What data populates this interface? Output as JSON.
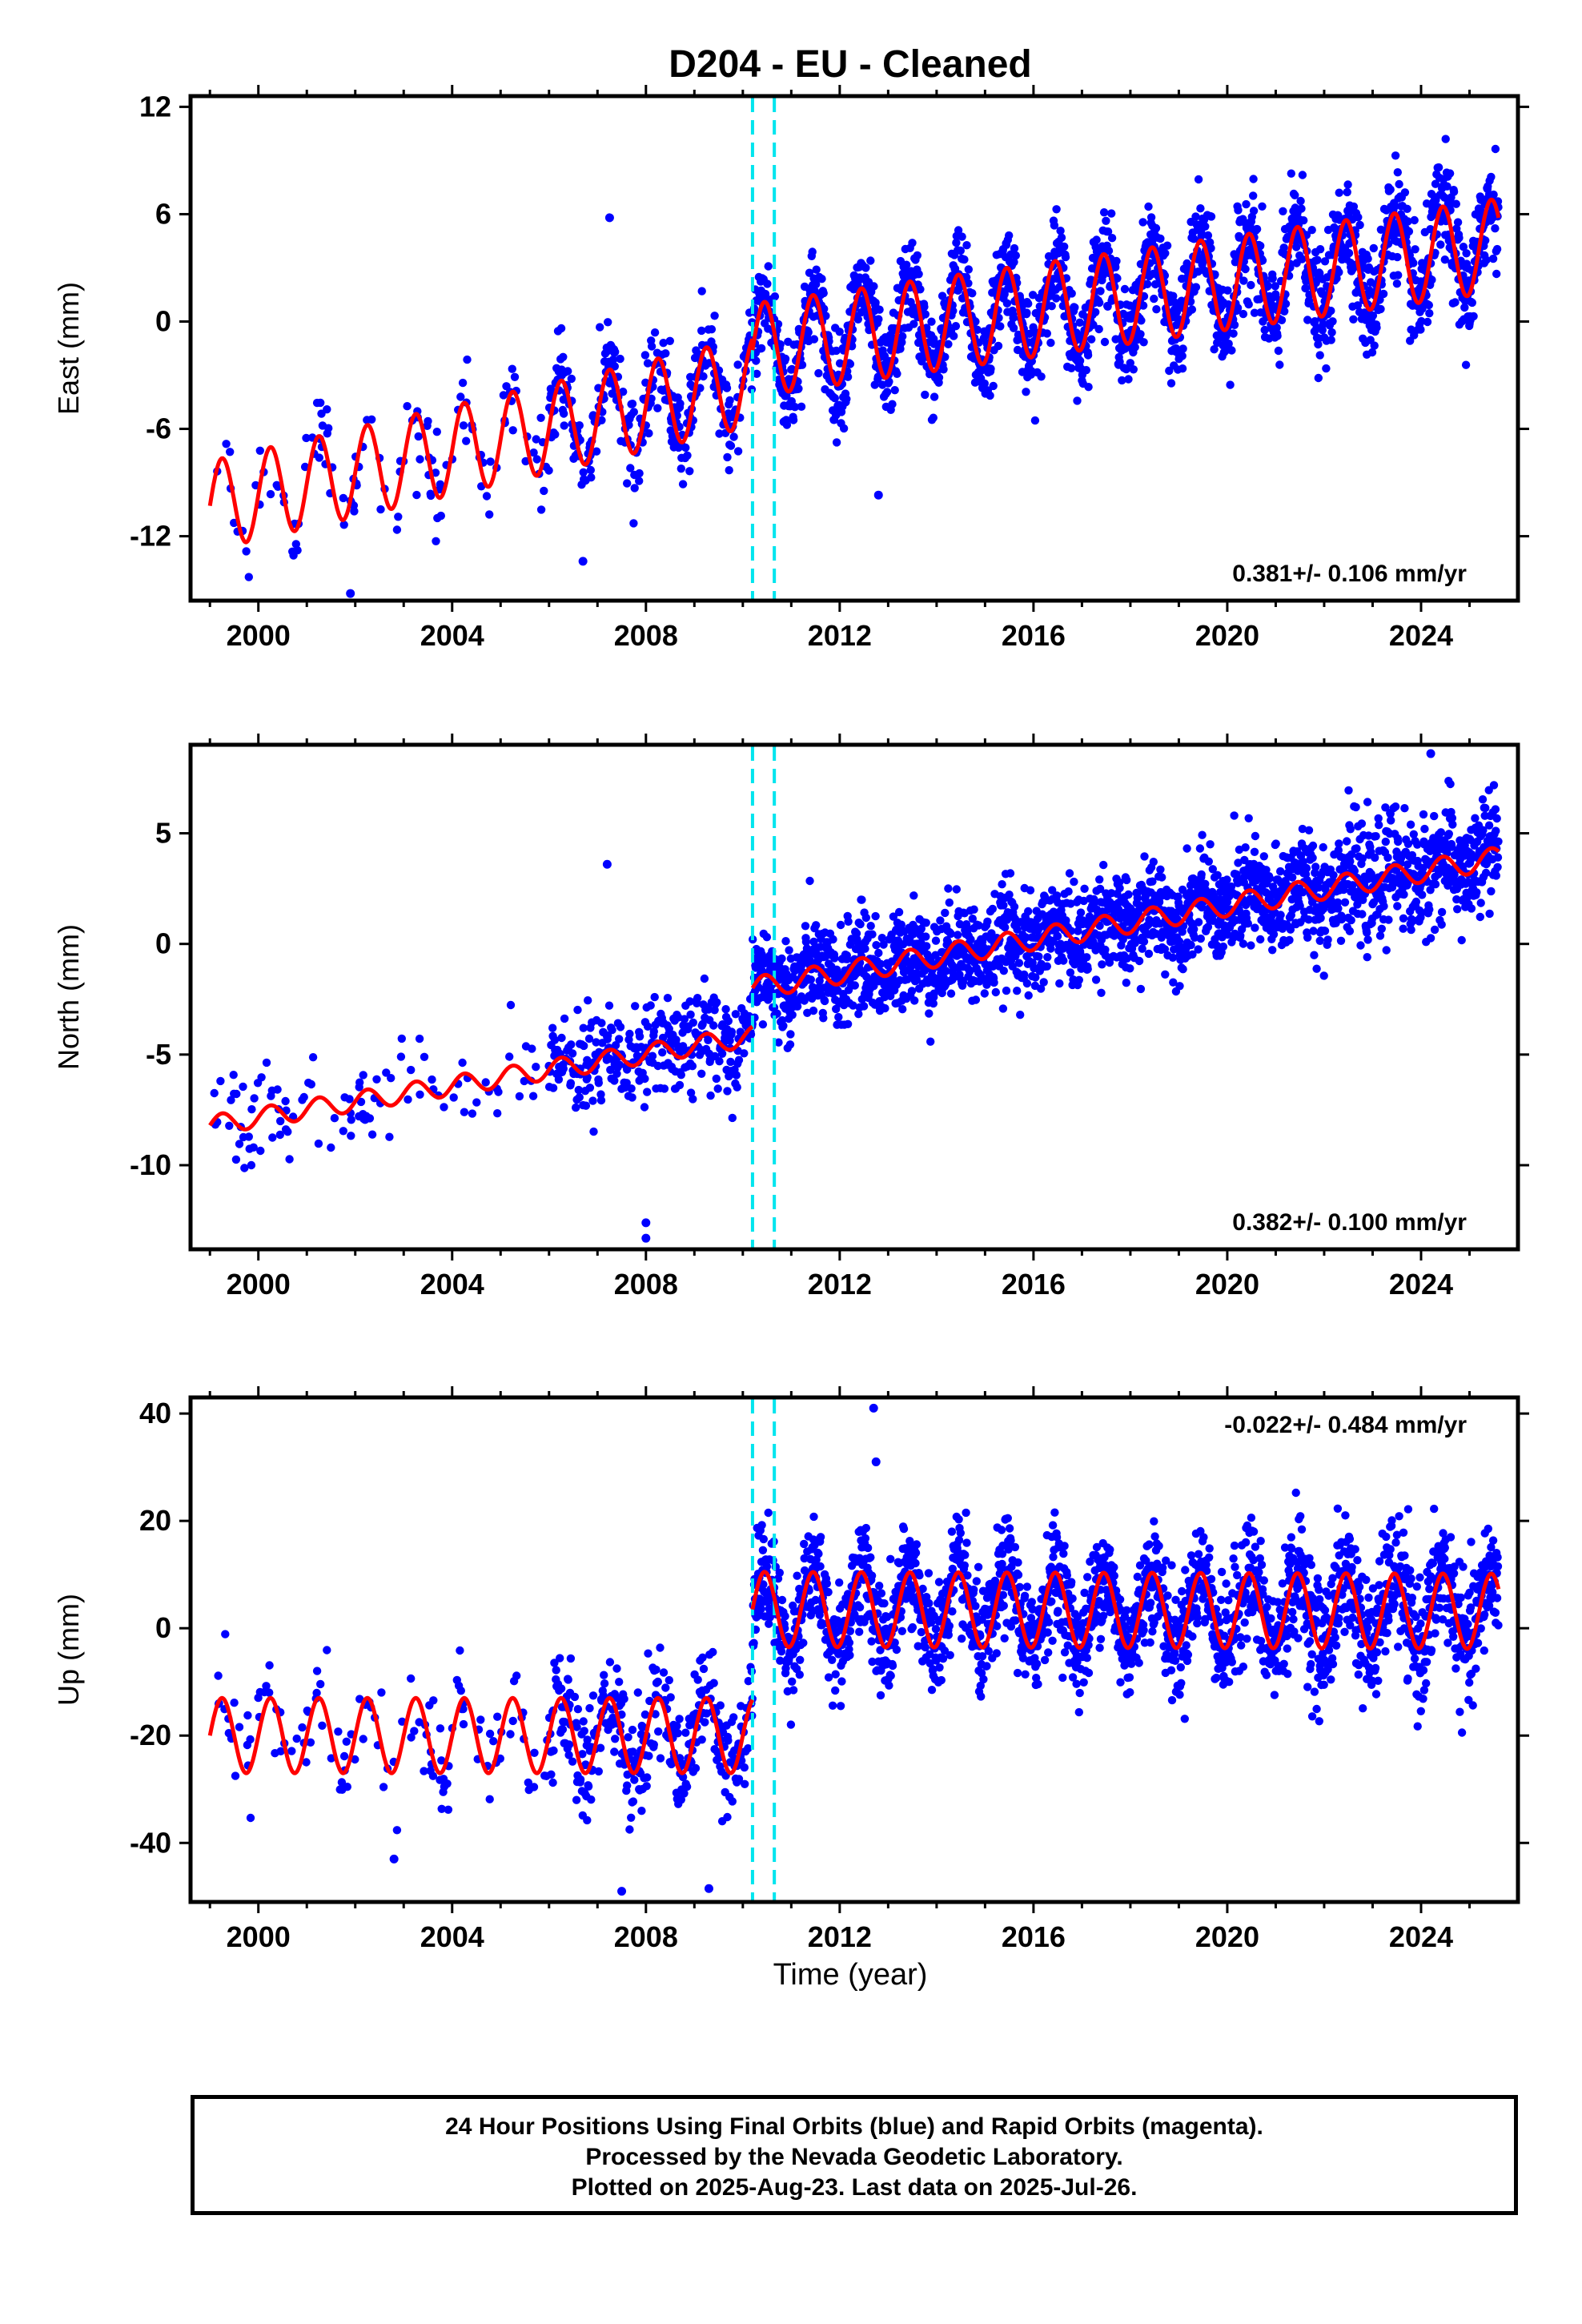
{
  "figure": {
    "title": "D204  - EU - Cleaned",
    "xlabel": "Time (year)"
  },
  "footer": {
    "line1": "24 Hour Positions Using Final Orbits (blue) and Rapid Orbits (magenta).",
    "line2": "Processed by the Nevada Geodetic Laboratory.",
    "line3": "Plotted on 2025-Aug-23. Last data on 2025-Jul-26."
  },
  "colors": {
    "points": "#0000ff",
    "model": "#ff0000",
    "steps": "#00e5ee",
    "frame": "#000000"
  },
  "chart_data": [
    {
      "type": "scatter",
      "component": "east",
      "ylabel": "East (mm)",
      "xlim": [
        1998.6,
        2026.0
      ],
      "ylim": [
        -15.6,
        12.6
      ],
      "yticks": [
        12,
        6,
        0,
        -6,
        -12
      ],
      "xticks": [
        2000,
        2004,
        2008,
        2012,
        2016,
        2020,
        2024
      ],
      "rate_label": "0.381+/- 0.106 mm/yr",
      "rate_position": "bottom-right",
      "step_lines": [
        2010.2,
        2010.65
      ],
      "series": [
        {
          "role": "model",
          "segments": [
            {
              "x0": 1999.0,
              "x1": 2010.2,
              "y0": -10.3,
              "slope": 0.62,
              "amp": 2.5,
              "phase": 0.0
            },
            {
              "x0": 2010.2,
              "x1": 2025.6,
              "y0": -1.6,
              "slope": 0.381,
              "amp": 2.6,
              "phase": 0.0
            }
          ]
        },
        {
          "role": "observations",
          "x_start": 1999.0,
          "x_end": 2025.6,
          "scatter_mm": 1.3,
          "outliers": [
            [
              2007.25,
              5.8
            ],
            [
              2012.8,
              -9.7
            ],
            [
              2001.9,
              -15.2
            ],
            [
              2006.7,
              -13.4
            ]
          ]
        }
      ]
    },
    {
      "type": "scatter",
      "component": "north",
      "ylabel": "North (mm)",
      "xlim": [
        1998.6,
        2026.0
      ],
      "ylim": [
        -13.8,
        9.0
      ],
      "yticks": [
        5,
        0,
        -5,
        -10
      ],
      "xticks": [
        2000,
        2004,
        2008,
        2012,
        2016,
        2020,
        2024
      ],
      "rate_label": "0.382+/- 0.100 mm/yr",
      "rate_position": "bottom-right",
      "step_lines": [
        2010.2,
        2010.65
      ],
      "series": [
        {
          "role": "model",
          "segments": [
            {
              "x0": 1999.0,
              "x1": 2010.2,
              "y0": -8.2,
              "slope": 0.36,
              "amp": 0.45,
              "phase": 0.0
            },
            {
              "x0": 2010.2,
              "x1": 2025.6,
              "y0": -2.0,
              "slope": 0.382,
              "amp": 0.5,
              "phase": 0.0
            }
          ]
        },
        {
          "role": "observations",
          "x_start": 1999.0,
          "x_end": 2025.6,
          "scatter_mm": 1.1,
          "outliers": [
            [
              2007.2,
              3.6
            ],
            [
              2008.0,
              -13.3
            ],
            [
              2008.0,
              -12.6
            ],
            [
              2024.2,
              8.6
            ]
          ]
        }
      ]
    },
    {
      "type": "scatter",
      "component": "up",
      "ylabel": "Up (mm)",
      "xlim": [
        1998.6,
        2026.0
      ],
      "ylim": [
        -51.0,
        43.0
      ],
      "yticks": [
        40,
        20,
        0,
        -20,
        -40
      ],
      "xticks": [
        2000,
        2004,
        2008,
        2012,
        2016,
        2020,
        2024
      ],
      "rate_label": "-0.022+/- 0.484 mm/yr",
      "rate_position": "top-right",
      "step_lines": [
        2010.2,
        2010.65
      ],
      "series": [
        {
          "role": "model",
          "segments": [
            {
              "x0": 1999.0,
              "x1": 2010.2,
              "y0": -20.0,
              "slope": 0.0,
              "amp": 7.0,
              "phase": 0.0
            },
            {
              "x0": 2010.2,
              "x1": 2025.6,
              "y0": 3.5,
              "slope": -0.022,
              "amp": 7.0,
              "phase": 0.0
            }
          ]
        },
        {
          "role": "observations",
          "x_start": 1999.0,
          "x_end": 2025.6,
          "scatter_mm": 5.0,
          "outliers": [
            [
              2012.7,
              41.0
            ],
            [
              2012.75,
              31.0
            ],
            [
              2007.5,
              -49.0
            ],
            [
              2009.3,
              -48.5
            ],
            [
              2002.8,
              -43.0
            ]
          ]
        }
      ]
    }
  ]
}
